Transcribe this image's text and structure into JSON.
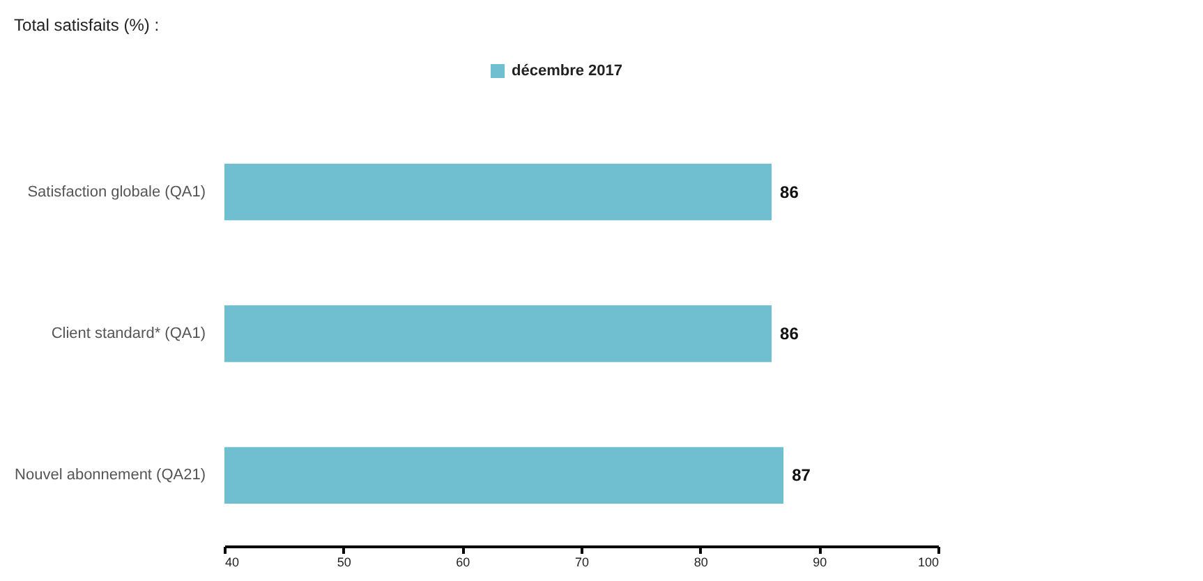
{
  "chart_data": {
    "type": "bar",
    "orientation": "horizontal",
    "title": "Total satisfaits (%) :",
    "categories": [
      "Satisfaction globale (QA1)",
      "Client standard* (QA1)",
      "Nouvel abonnement (QA21)"
    ],
    "series": [
      {
        "name": "décembre 2017",
        "color": "#6fbfd0",
        "values": [
          86,
          86,
          87
        ]
      }
    ],
    "xlim": [
      40,
      100
    ],
    "xticks": [
      40,
      50,
      60,
      70,
      80,
      90,
      100
    ],
    "data_labels": true,
    "grid": false,
    "legend": "top"
  }
}
